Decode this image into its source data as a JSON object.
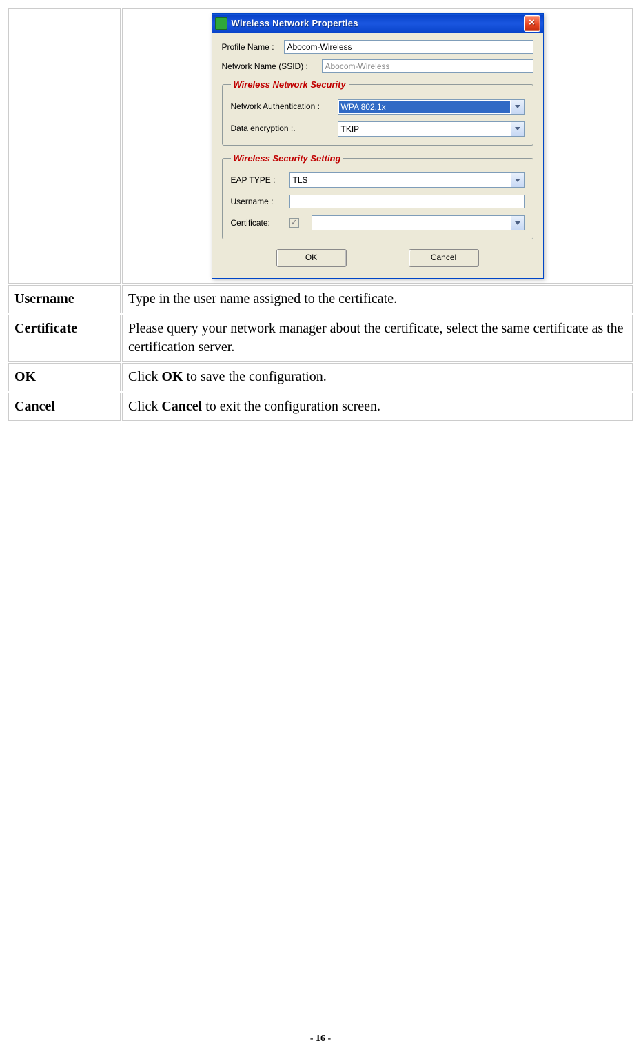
{
  "dialog": {
    "title": "Wireless Network Properties",
    "profile_name_label": "Profile Name :",
    "profile_name_value": "Abocom-Wireless",
    "ssid_label": "Network Name (SSID) :",
    "ssid_value": "Abocom-Wireless",
    "security_group": {
      "legend": "Wireless Network Security",
      "auth_label": "Network Authentication :",
      "auth_value": "WPA 802.1x",
      "encryption_label": "Data encryption :.",
      "encryption_value": "TKIP"
    },
    "setting_group": {
      "legend": "Wireless Security Setting",
      "eap_label": "EAP TYPE :",
      "eap_value": "TLS",
      "username_label": "Username :",
      "username_value": "",
      "certificate_label": "Certificate:",
      "certificate_value": ""
    },
    "ok_button": "OK",
    "cancel_button": "Cancel"
  },
  "table": {
    "rows": [
      {
        "label": "Username",
        "desc_pre": "Type in the user name assigned to the certificate.",
        "bold": "",
        "desc_post": ""
      },
      {
        "label": "Certificate",
        "desc_pre": "Please query your network manager about the certificate, select the same certificate as the certification server.",
        "bold": "",
        "desc_post": ""
      },
      {
        "label": "OK",
        "desc_pre": "Click ",
        "bold": "OK",
        "desc_post": " to save the configuration."
      },
      {
        "label": "Cancel",
        "desc_pre": "Click ",
        "bold": "Cancel",
        "desc_post": " to exit the configuration screen."
      }
    ]
  },
  "footer": "- 16 -"
}
